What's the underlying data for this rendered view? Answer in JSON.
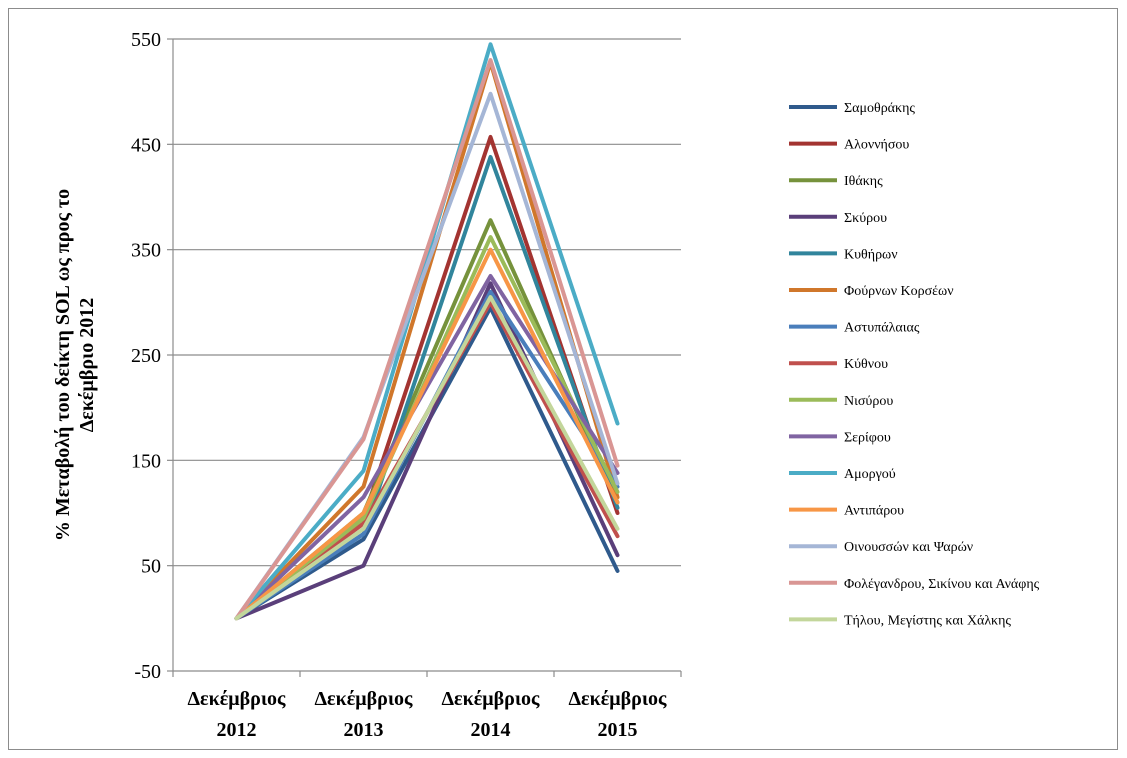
{
  "chart_data": {
    "type": "line",
    "title": "",
    "xlabel": "",
    "ylabel": "% Μεταβολή του δείκτη SOL ως προς το Δεκέμβριο 2012",
    "ylim": [
      -50,
      550
    ],
    "yticks": [
      -50,
      50,
      150,
      250,
      350,
      450,
      550
    ],
    "grid": true,
    "legend_position": "right",
    "categories": [
      [
        "Δεκέμβριος",
        "2012"
      ],
      [
        "Δεκέμβριος",
        "2013"
      ],
      [
        "Δεκέμβριος",
        "2014"
      ],
      [
        "Δεκέμβριος",
        "2015"
      ]
    ],
    "series": [
      {
        "name": "Σαμοθράκης",
        "color": "#2f5a8c",
        "values": [
          0,
          75,
          295,
          45
        ]
      },
      {
        "name": "Αλοννήσου",
        "color": "#a33431",
        "values": [
          0,
          95,
          457,
          100
        ]
      },
      {
        "name": "Ιθάκης",
        "color": "#76923c",
        "values": [
          0,
          100,
          378,
          110
        ]
      },
      {
        "name": "Σκύρου",
        "color": "#5a3f7a",
        "values": [
          0,
          50,
          318,
          60
        ]
      },
      {
        "name": "Κυθήρων",
        "color": "#31859c",
        "values": [
          0,
          80,
          438,
          105
        ]
      },
      {
        "name": "Φούρνων Κορσέων",
        "color": "#d0772b",
        "values": [
          0,
          125,
          528,
          115
        ]
      },
      {
        "name": "Αστυπάλαιας",
        "color": "#4a7ebb",
        "values": [
          0,
          80,
          310,
          125
        ]
      },
      {
        "name": "Κύθνου",
        "color": "#c0504d",
        "values": [
          0,
          90,
          300,
          78
        ]
      },
      {
        "name": "Νισύρου",
        "color": "#9bbb59",
        "values": [
          0,
          95,
          362,
          120
        ]
      },
      {
        "name": "Σερίφου",
        "color": "#8064a2",
        "values": [
          0,
          115,
          325,
          138
        ]
      },
      {
        "name": "Αμοργού",
        "color": "#4bacc6",
        "values": [
          0,
          140,
          545,
          185
        ]
      },
      {
        "name": "Αντιπάρου",
        "color": "#f79646",
        "values": [
          0,
          100,
          350,
          110
        ]
      },
      {
        "name": "Οινουσσών και Ψαρών",
        "color": "#a5b6d6",
        "values": [
          0,
          172,
          498,
          128
        ]
      },
      {
        "name": "Φολέγανδρου, Σικίνου και Ανάφης",
        "color": "#d99694",
        "values": [
          0,
          170,
          530,
          145
        ]
      },
      {
        "name": "Τήλου, Μεγίστης και Χάλκης",
        "color": "#c3d69b",
        "values": [
          0,
          85,
          305,
          85
        ]
      }
    ]
  }
}
